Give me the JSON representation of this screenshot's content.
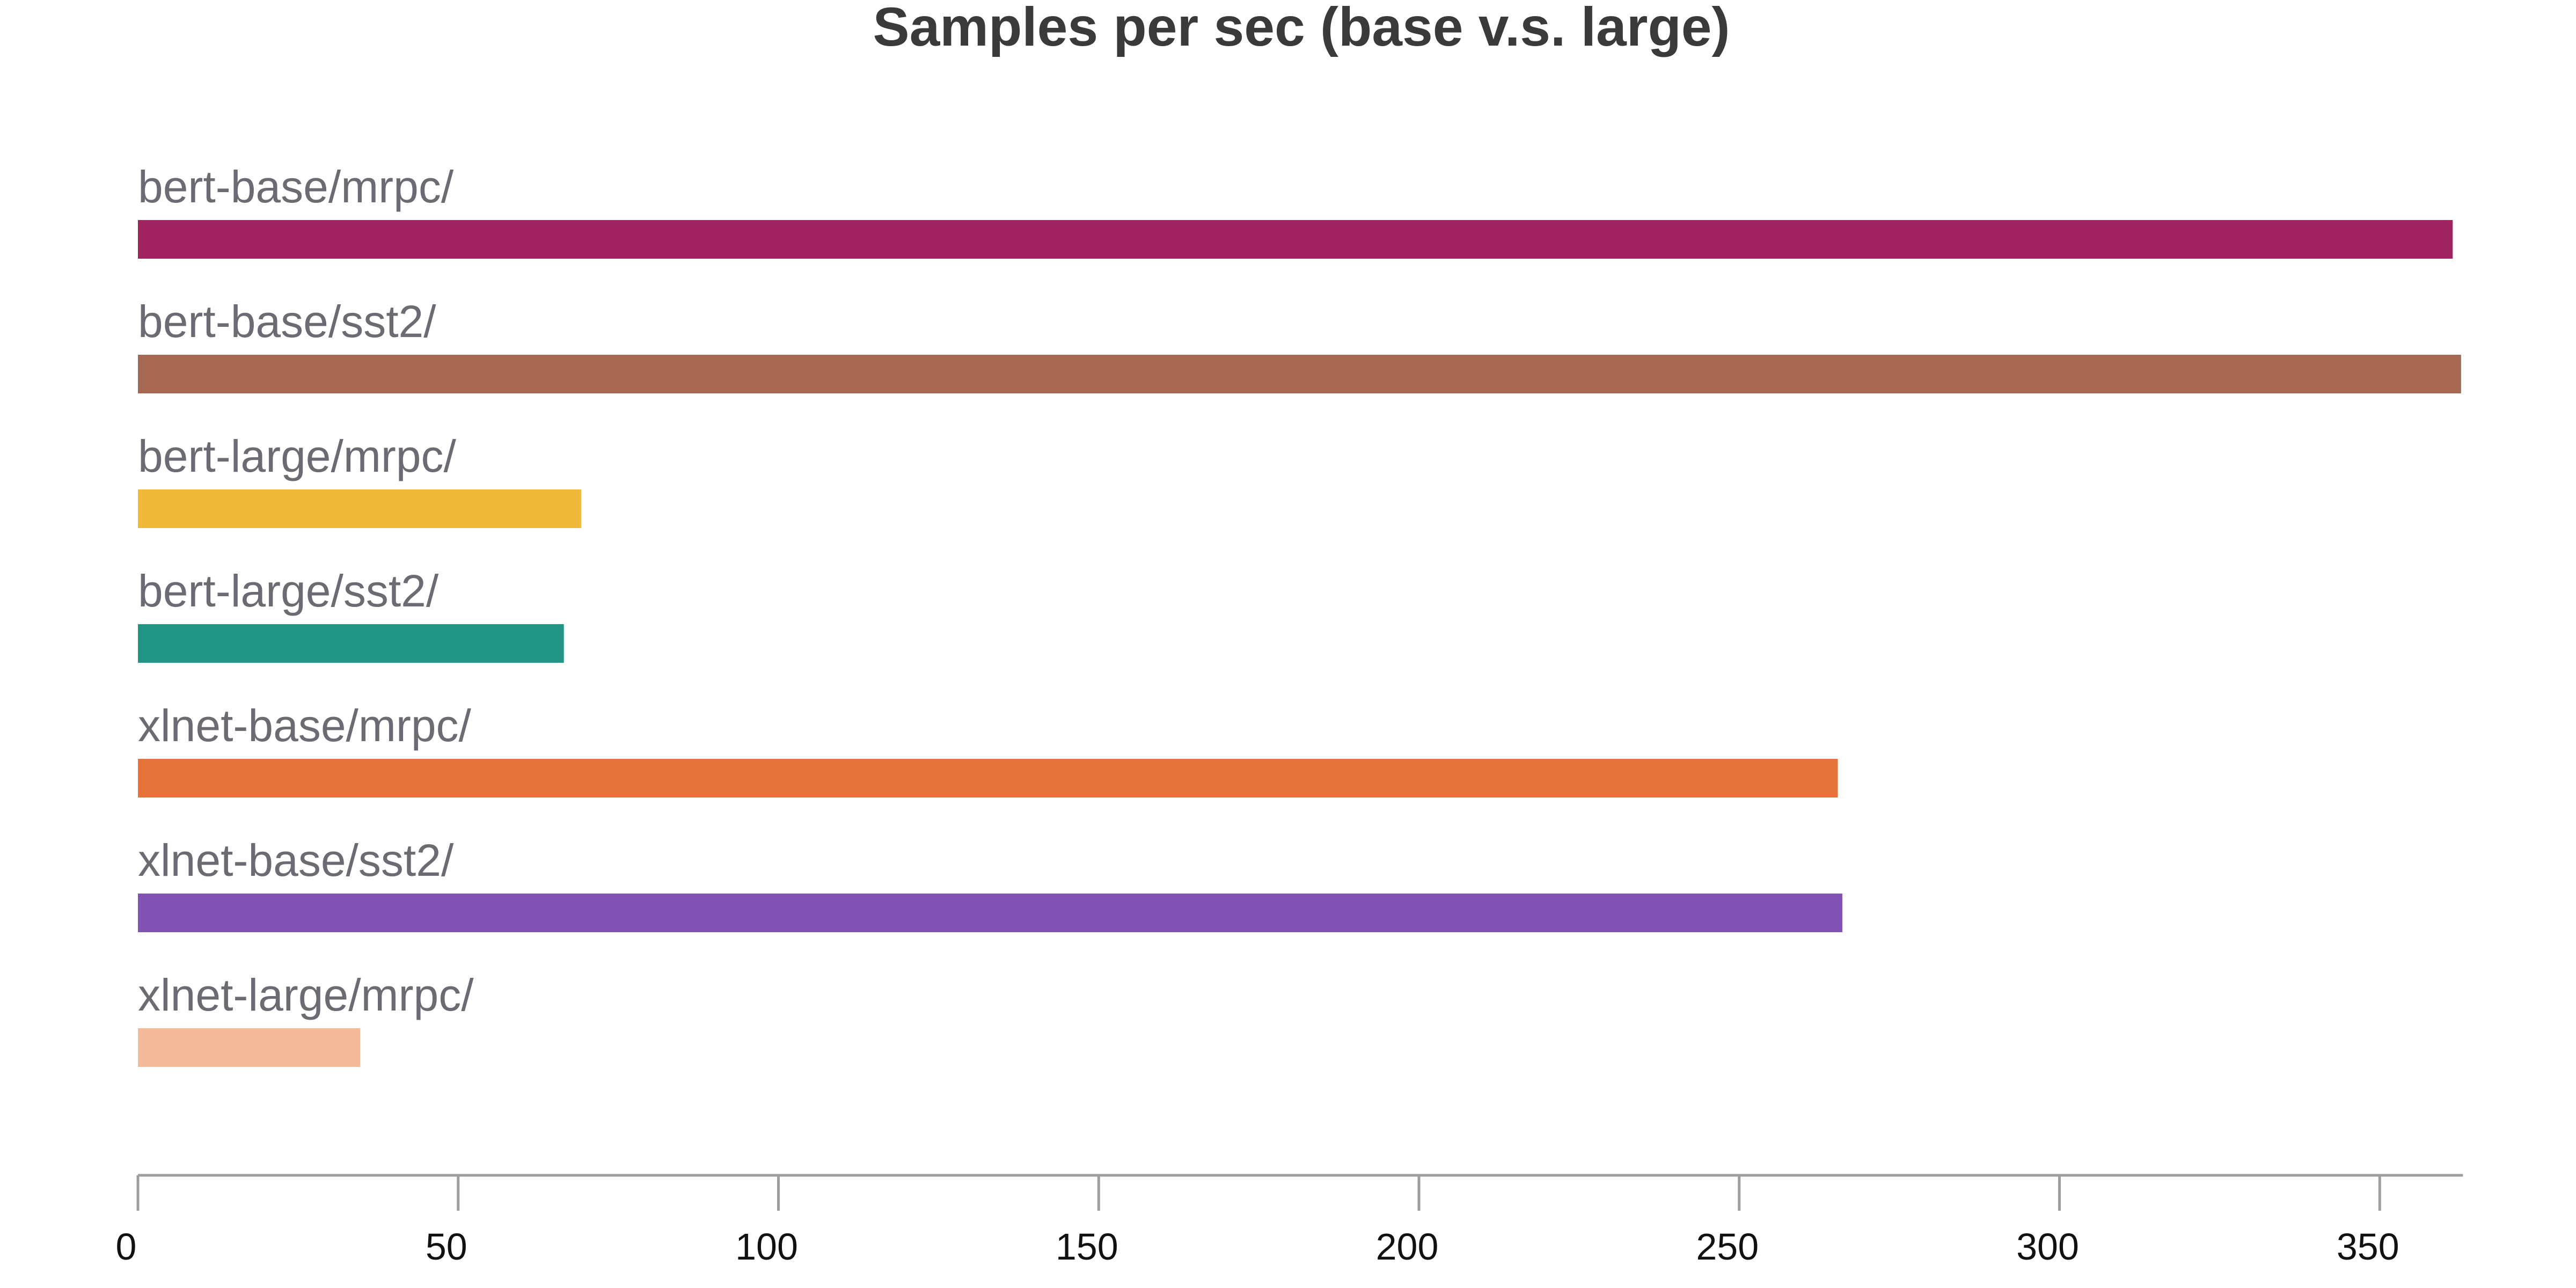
{
  "chart_data": {
    "type": "bar",
    "orientation": "horizontal",
    "title": "Samples per sec (base v.s. large)",
    "xlabel": "",
    "ylabel": "",
    "xlim": [
      0,
      363
    ],
    "xticks": [
      0,
      50,
      100,
      150,
      200,
      250,
      300,
      350
    ],
    "grid": false,
    "legend": "none",
    "categories": [
      "bert-base/mrpc/",
      "bert-base/sst2/",
      "bert-large/mrpc/",
      "bert-large/sst2/",
      "xlnet-base/mrpc/",
      "xlnet-base/sst2/",
      "xlnet-large/mrpc/"
    ],
    "values": [
      361.4,
      362.7,
      69.2,
      66.5,
      265.4,
      266.1,
      34.7
    ],
    "colors": [
      "#a02461",
      "#a66852",
      "#f0b93a",
      "#219684",
      "#e5733a",
      "#7f52b3",
      "#f3b999"
    ]
  }
}
